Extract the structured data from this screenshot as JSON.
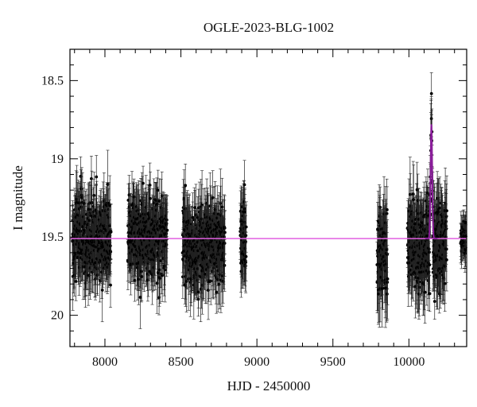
{
  "chart_data": {
    "type": "scatter",
    "title": "OGLE-2023-BLG-1002",
    "xlabel": "HJD - 2450000",
    "ylabel": "I magnitude",
    "xlim": [
      7770,
      10380
    ],
    "ylim": [
      20.2,
      18.3
    ],
    "y_inverted": true,
    "xticks": [
      8000,
      8500,
      9000,
      9500,
      10000
    ],
    "xtick_labels": [
      "8000",
      "8500",
      "9000",
      "9500",
      "10000"
    ],
    "yticks": [
      18.5,
      19,
      19.5,
      20
    ],
    "ytick_labels": [
      "18.5",
      "19",
      "19.5",
      "20"
    ],
    "grid": false,
    "baseline_magnitude": 19.51,
    "model_color": "#e060e0",
    "peak_model_color": "#8a1e9a",
    "point_color": "#000000",
    "series": [
      {
        "style": "points-with-errorbars",
        "segments": [
          {
            "x_range": [
              7785,
              8040
            ],
            "mean_mag": 19.5,
            "spread": 0.24,
            "typical_error": 0.17
          },
          {
            "x_range": [
              8150,
              8410
            ],
            "mean_mag": 19.5,
            "spread": 0.24,
            "typical_error": 0.17
          },
          {
            "x_range": [
              8510,
              8790
            ],
            "mean_mag": 19.55,
            "spread": 0.24,
            "typical_error": 0.17
          },
          {
            "x_range": [
              8890,
              8930
            ],
            "mean_mag": 19.5,
            "spread": 0.24,
            "typical_error": 0.17
          },
          {
            "x_range": [
              9790,
              9860
            ],
            "mean_mag": 19.6,
            "spread": 0.26,
            "typical_error": 0.2
          },
          {
            "x_range": [
              9990,
              10250
            ],
            "mean_mag": 19.55,
            "spread": 0.26,
            "typical_error": 0.19
          },
          {
            "x_range": [
              10340,
              10375
            ],
            "mean_mag": 19.5,
            "spread": 0.08,
            "typical_error": 0.1
          }
        ]
      },
      {
        "style": "model-curve",
        "event_peak_hjd": 10148,
        "peak_magnitude": 18.78,
        "event_timescale_days": 18
      }
    ]
  }
}
